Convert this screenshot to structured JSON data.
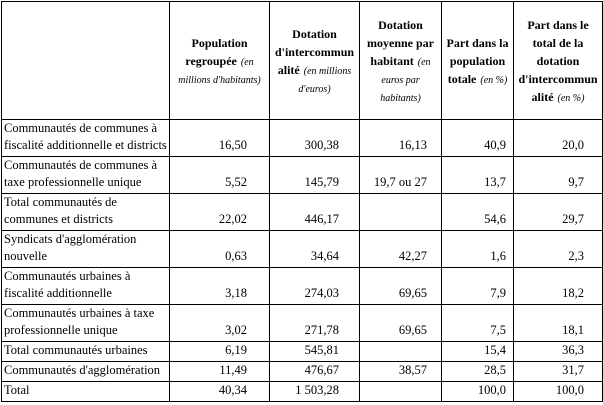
{
  "colors": {
    "background": "#ffffff",
    "border": "#000000",
    "text": "#000000"
  },
  "table": {
    "columns": [
      {
        "title": "",
        "unit": ""
      },
      {
        "title": "Population regroupée",
        "unit": "(en millions d'habitants)"
      },
      {
        "title": "Dotation d'intercommunalité",
        "unit": "(en millions d'euros)"
      },
      {
        "title": "Dotation moyenne par habitant",
        "unit": "(en euros par habitants)"
      },
      {
        "title": "Part dans la population totale",
        "unit": "(en %)"
      },
      {
        "title": "Part dans le total de la dotation d'intercommunalité",
        "unit": "(en %)"
      }
    ],
    "rows": [
      {
        "label": "Communautés de communes à fiscalité additionnelle et districts",
        "values": [
          "16,50",
          "300,38",
          "16,13",
          "40,9",
          "20,0"
        ]
      },
      {
        "label": "Communautés de communes à taxe professionnelle unique",
        "values": [
          "5,52",
          "145,79",
          "19,7 ou 27",
          "13,7",
          "9,7"
        ]
      },
      {
        "label": "Total communautés de communes et districts",
        "values": [
          "22,02",
          "446,17",
          "",
          "54,6",
          "29,7"
        ]
      },
      {
        "label": "Syndicats d'agglomération nouvelle",
        "values": [
          "0,63",
          "34,64",
          "42,27",
          "1,6",
          "2,3"
        ]
      },
      {
        "label": "Communautés urbaines à fiscalité additionnelle",
        "values": [
          "3,18",
          "274,03",
          "69,65",
          "7,9",
          "18,2"
        ]
      },
      {
        "label": "Communautés urbaines à taxe professionnelle unique",
        "values": [
          "3,02",
          "271,78",
          "69,65",
          "7,5",
          "18,1"
        ]
      },
      {
        "label": "Total communautés urbaines",
        "values": [
          "6,19",
          "545,81",
          "",
          "15,4",
          "36,3"
        ]
      },
      {
        "label": "Communautés d'agglomération",
        "values": [
          "11,49",
          "476,67",
          "38,57",
          "28,5",
          "31,7"
        ]
      },
      {
        "label": "Total",
        "values": [
          "40,34",
          "1 503,28",
          "",
          "100,0",
          "100,0"
        ]
      }
    ]
  }
}
